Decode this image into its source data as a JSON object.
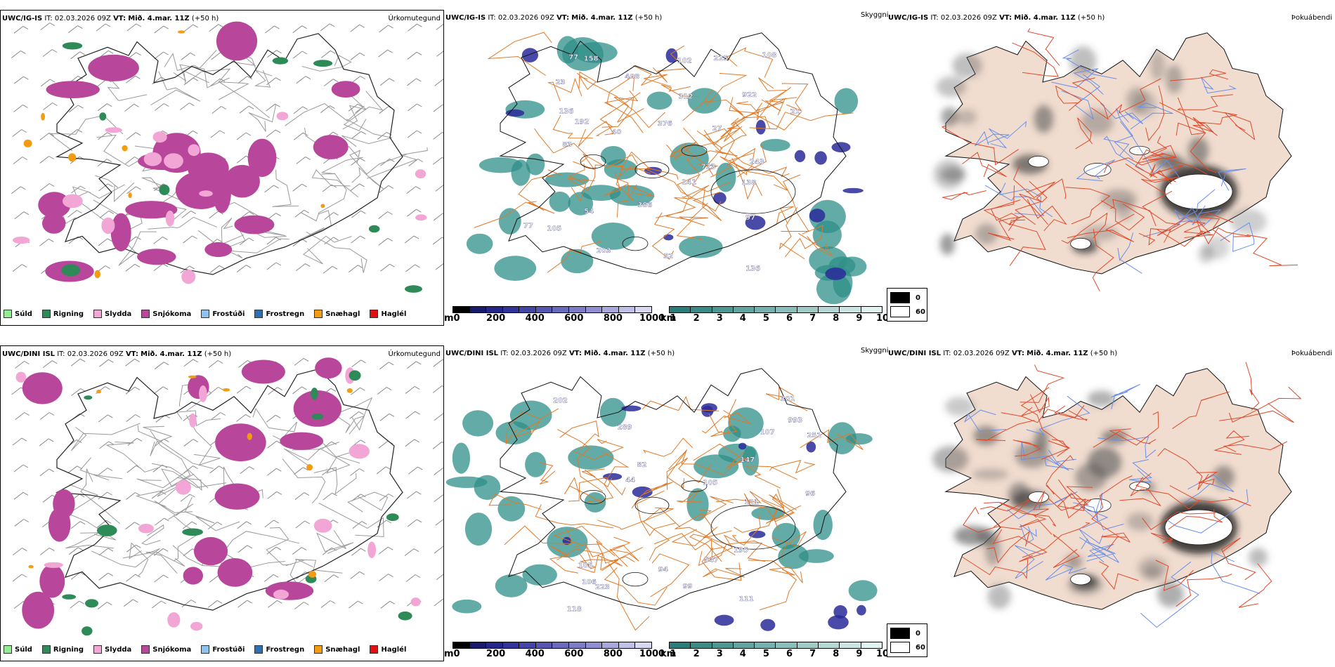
{
  "rows": [
    {
      "model": "UWC/IG-IS",
      "it_label": "IT:",
      "it_value": "02.03.2026 09Z",
      "vt_label": "VT:",
      "vt_value": "Mið. 4.mar. 11Z",
      "lead": "(+50 h)",
      "numbers": [
        "136",
        "136",
        "97",
        "83",
        "408",
        "225",
        "203",
        "77",
        "312",
        "108",
        "102",
        "138",
        "23",
        "243",
        "723",
        "141",
        "54",
        "376",
        "386",
        "158",
        "27",
        "77",
        "105",
        "52",
        "922",
        "192",
        "40",
        "21"
      ]
    },
    {
      "model": "UWC/DINI ISL",
      "it_label": "IT:",
      "it_value": "02.03.2026 09Z",
      "vt_label": "VT:",
      "vt_value": "Mið. 4.mar. 11Z",
      "lead": "(+50 h)",
      "numbers": [
        "993",
        "301",
        "111",
        "105",
        "547",
        "147",
        "118",
        "94",
        "96",
        "202",
        "121",
        "195",
        "82",
        "107",
        "44",
        "289",
        "251",
        "106",
        "223",
        "99",
        "105"
      ]
    }
  ],
  "panel_types": {
    "precip": "Úrkomutegund",
    "visibility": "Skyggni",
    "fog": "Þokuábendi"
  },
  "precip_legend": [
    {
      "label": "Súld",
      "color": "#90ee90"
    },
    {
      "label": "Rigning",
      "color": "#2e8b57"
    },
    {
      "label": "Slydda",
      "color": "#f2a6d6"
    },
    {
      "label": "Snjókoma",
      "color": "#b8479b"
    },
    {
      "label": "Frostúði",
      "color": "#8ec2f0"
    },
    {
      "label": "Frostregn",
      "color": "#2f6fb0"
    },
    {
      "label": "Snæhagl",
      "color": "#f39c12"
    },
    {
      "label": "Haglél",
      "color": "#e01010"
    }
  ],
  "colorbar_m": {
    "unit": "m",
    "ticks": [
      "0",
      "200",
      "400",
      "600",
      "800",
      "1000"
    ],
    "colors": [
      "#000000",
      "#1a1a6e",
      "#26268a",
      "#33339c",
      "#4545a8",
      "#5757b2",
      "#6a6abd",
      "#7d7dc7",
      "#9090d0",
      "#a8a8dc",
      "#c0c0e6",
      "#d8d8f0"
    ]
  },
  "colorbar_km": {
    "unit": "km",
    "ticks": [
      "1",
      "2",
      "3",
      "4",
      "5",
      "6",
      "7",
      "8",
      "9",
      "10"
    ],
    "colors": [
      "#2a7d7a",
      "#3a8a86",
      "#4d9793",
      "#61a4a0",
      "#75b1ad",
      "#8abeba",
      "#9fcbc7",
      "#b5d8d4",
      "#cbe5e2",
      "#e2f2f0"
    ]
  },
  "fog_legend": {
    "top": {
      "value": "0",
      "color": "#000000"
    },
    "bottom": {
      "value": "60",
      "color": "#ffffff"
    }
  },
  "colors": {
    "land_fog": "#f1ddd0",
    "roads_orange": "#e07a2a",
    "roads_red": "#e04a2a",
    "rivers": "#6b8fe8",
    "teal": "#2f8f88",
    "snow_purple": "#b8479b"
  }
}
